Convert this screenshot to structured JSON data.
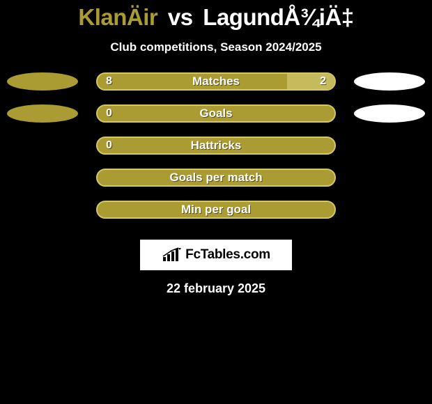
{
  "colors": {
    "p1": "#aa9c33",
    "p2": "#ffffff",
    "bar_bg": "#aa9c33",
    "bar_border": "#d4c866",
    "bar_left_fill": "#aa9c33",
    "bar_right_fill": "#c5ba5c"
  },
  "title": {
    "p1": "KlanÄir",
    "vs": "vs",
    "p2": "LagundÅ¾iÄ‡"
  },
  "subtitle": "Club competitions, Season 2024/2025",
  "stats": [
    {
      "label": "Matches",
      "left_val": "8",
      "right_val": "2",
      "left_pct": 80,
      "right_pct": 20,
      "show_left_ellipse": true,
      "show_right_ellipse": true
    },
    {
      "label": "Goals",
      "left_val": "0",
      "right_val": "",
      "left_pct": 100,
      "right_pct": 0,
      "show_left_ellipse": true,
      "show_right_ellipse": true
    },
    {
      "label": "Hattricks",
      "left_val": "0",
      "right_val": "",
      "left_pct": 100,
      "right_pct": 0,
      "show_left_ellipse": false,
      "show_right_ellipse": false
    },
    {
      "label": "Goals per match",
      "left_val": "",
      "right_val": "",
      "left_pct": 100,
      "right_pct": 0,
      "show_left_ellipse": false,
      "show_right_ellipse": false
    },
    {
      "label": "Min per goal",
      "left_val": "",
      "right_val": "",
      "left_pct": 100,
      "right_pct": 0,
      "show_left_ellipse": false,
      "show_right_ellipse": false
    }
  ],
  "brand": "FcTables.com",
  "date": "22 february 2025"
}
